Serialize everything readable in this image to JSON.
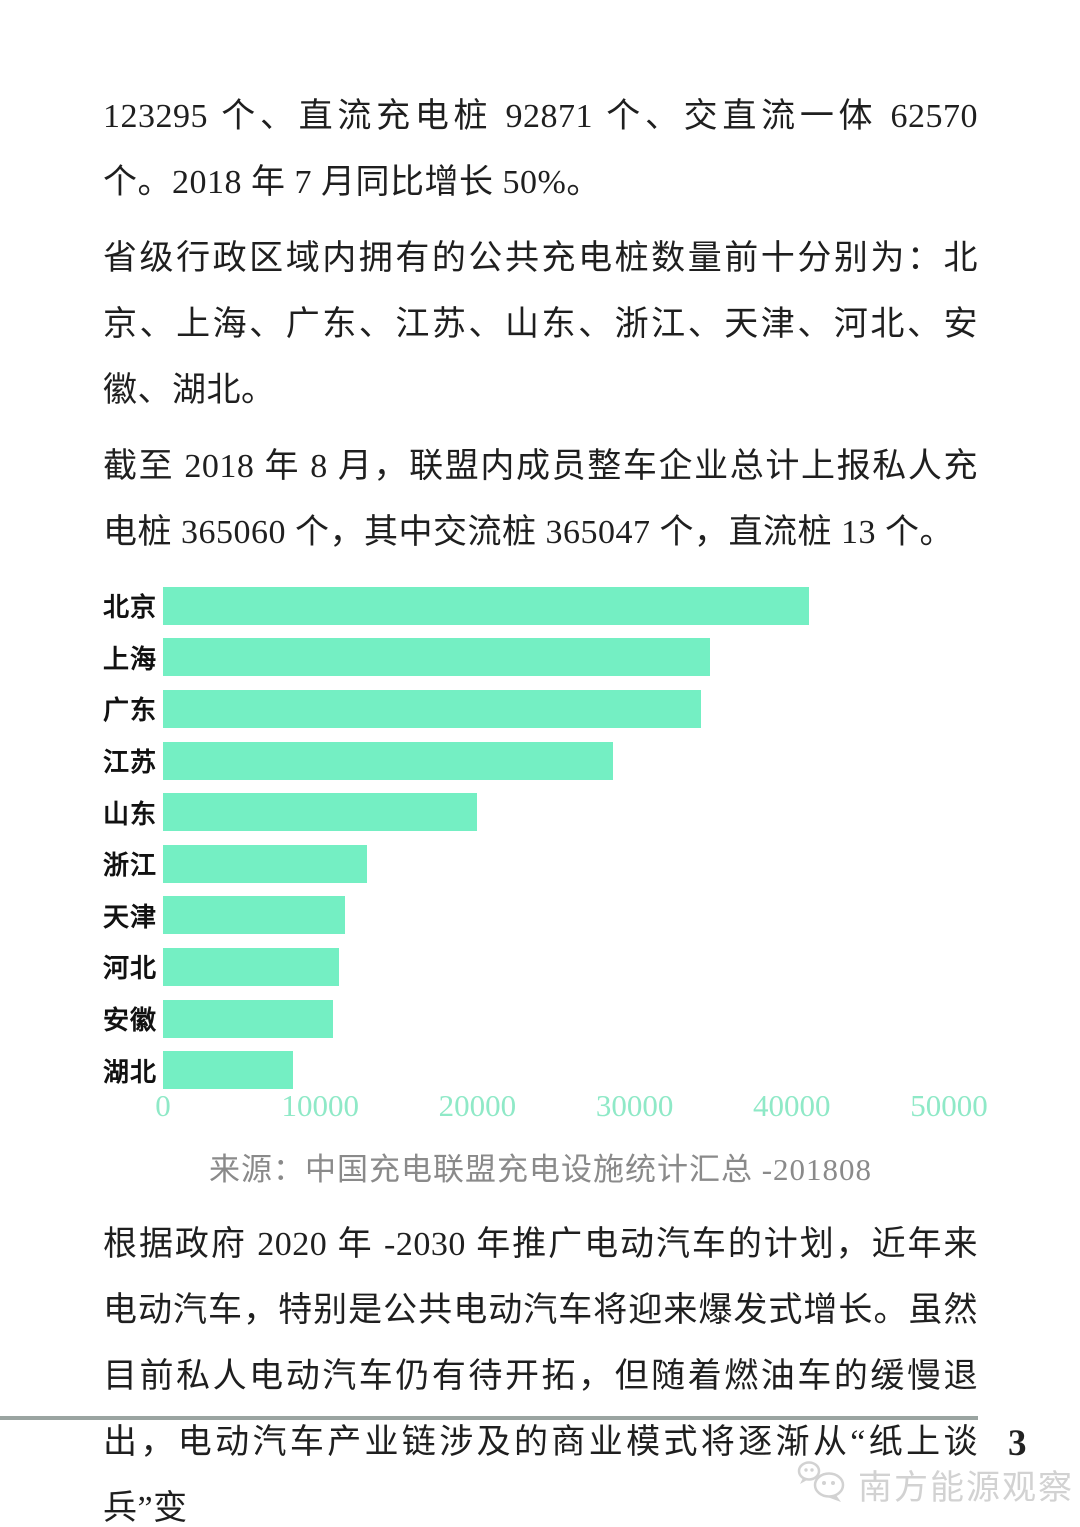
{
  "page": {
    "paragraphs": [
      "123295 个、直流充电桩 92871 个、交直流一体 62570 个。2018 年 7 月同比增长 50%。",
      "省级行政区域内拥有的公共充电桩数量前十分别为：北京、上海、广东、江苏、山东、浙江、天津、河北、安徽、湖北。",
      "截至 2018 年 8 月，联盟内成员整车企业总计上报私人充电桩 365060 个，其中交流桩 365047 个，直流桩 13 个。",
      "根据政府 2020 年 -2030 年推广电动汽车的计划，近年来电动汽车，特别是公共电动汽车将迎来爆发式增长。虽然目前私人电动汽车仍有待开拓，但随着燃油车的缓慢退出，电动汽车产业链涉及的商业模式将逐渐从“纸上谈兵”变"
    ],
    "chart_caption": "来源：中国充电联盟充电设施统计汇总 -201808",
    "footer": {
      "page_number": "3",
      "watermark_text": "南方能源观察"
    },
    "colors": {
      "bar_fill": "#74efc3",
      "axis_tick": "#8fe9c7",
      "caption_gray": "#8a8a8a",
      "body_text": "#1f1f1f",
      "footer_line": "#9aa4a1",
      "watermark_gray": "#d2d2d2"
    },
    "icons": {
      "watermark_icon": "speech-bubbles-icon"
    }
  },
  "chart_data": {
    "type": "bar",
    "orientation": "horizontal",
    "title": "",
    "xlabel": "",
    "ylabel": "",
    "categories": [
      "北京",
      "上海",
      "广东",
      "江苏",
      "山东",
      "浙江",
      "天津",
      "河北",
      "安徽",
      "湖北"
    ],
    "values": [
      41100,
      34800,
      34200,
      28600,
      20000,
      13000,
      11600,
      11200,
      10800,
      8300
    ],
    "x_ticks": [
      0,
      10000,
      20000,
      30000,
      40000,
      50000
    ],
    "xlim": [
      0,
      50000
    ],
    "grid": false,
    "legend_position": "none",
    "bar_color": "#74efc3",
    "source_caption": "来源：中国充电联盟充电设施统计汇总 -201808"
  }
}
